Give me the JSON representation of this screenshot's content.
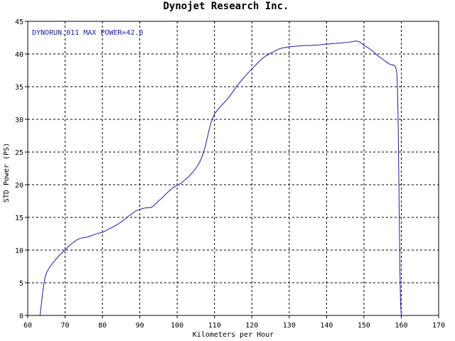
{
  "chart_data": {
    "type": "line",
    "title": "Dynojet  Research  Inc.",
    "xlabel": "Kilometers per Hour",
    "ylabel": "STD Power (PS)",
    "xlim": [
      60,
      170
    ],
    "ylim": [
      0,
      45
    ],
    "xticks": [
      60,
      70,
      80,
      90,
      100,
      110,
      120,
      130,
      140,
      150,
      160,
      170
    ],
    "yticks": [
      0,
      5,
      10,
      15,
      20,
      25,
      30,
      35,
      40,
      45
    ],
    "grid": true,
    "legend_text": "DYNORUN.011  MAX POWER=42.0",
    "line_color": "#1c1ca8",
    "series": [
      {
        "x": [
          63.3,
          63.6,
          64.0,
          64.5,
          65.0,
          66.0,
          67.0,
          68.0,
          69.0,
          70.0,
          71.0,
          72.0,
          73.0,
          74.0,
          75.0,
          76.0,
          77.0,
          78.0,
          79.0,
          80.0,
          81.0,
          82.0,
          83.0,
          84.0,
          85.0,
          86.0,
          87.0,
          88.0,
          89.0,
          90.0,
          91.0,
          92.0,
          93.0,
          94.0,
          95.0,
          96.0,
          97.0,
          98.0,
          99.0,
          100.0,
          101.0,
          102.0,
          103.0,
          104.0,
          105.0,
          106.0,
          107.0,
          107.5,
          108.0,
          108.5,
          109.0,
          109.5,
          110.0,
          111.0,
          112.0,
          113.0,
          114.0,
          115.0,
          116.0,
          117.0,
          118.0,
          119.0,
          120.0,
          121.0,
          122.0,
          123.0,
          124.0,
          125.0,
          126.0,
          127.0,
          128.0,
          129.0,
          130.0,
          132.0,
          134.0,
          136.0,
          138.0,
          140.0,
          142.0,
          144.0,
          146.0,
          147.0,
          148.0,
          149.0,
          150.0,
          151.0,
          152.0,
          153.0,
          154.0,
          155.0,
          156.0,
          157.0,
          158.0,
          158.5,
          158.8,
          159.0,
          159.2,
          159.4,
          159.6,
          159.8,
          160.0
        ],
        "y": [
          0.0,
          1.5,
          3.5,
          5.5,
          6.5,
          7.5,
          8.2,
          8.9,
          9.5,
          10.0,
          10.6,
          11.1,
          11.5,
          11.8,
          11.9,
          12.0,
          12.2,
          12.4,
          12.6,
          12.7,
          13.0,
          13.3,
          13.6,
          13.9,
          14.3,
          14.7,
          15.2,
          15.6,
          16.0,
          16.2,
          16.4,
          16.5,
          16.5,
          16.9,
          17.5,
          18.0,
          18.6,
          19.1,
          19.6,
          19.9,
          20.2,
          20.7,
          21.2,
          21.8,
          22.5,
          23.4,
          24.8,
          25.8,
          27.0,
          28.3,
          29.4,
          30.2,
          30.8,
          31.6,
          32.2,
          32.8,
          33.5,
          34.3,
          35.1,
          35.8,
          36.5,
          37.1,
          37.7,
          38.3,
          38.9,
          39.4,
          39.8,
          40.1,
          40.4,
          40.7,
          40.9,
          41.0,
          41.1,
          41.2,
          41.3,
          41.3,
          41.4,
          41.5,
          41.6,
          41.7,
          41.8,
          41.9,
          42.0,
          41.8,
          41.3,
          41.0,
          40.6,
          40.1,
          39.6,
          39.2,
          38.8,
          38.4,
          38.3,
          38.0,
          37.0,
          34.5,
          28.0,
          18.0,
          8.0,
          2.0,
          0.0
        ]
      }
    ]
  }
}
